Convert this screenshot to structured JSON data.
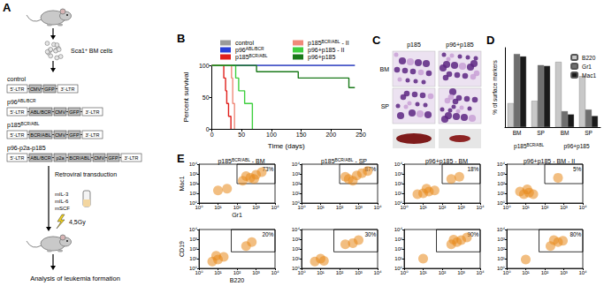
{
  "diagram": {
    "panel": "A",
    "cells": "Sca1+ BM cells",
    "constructs": [
      {
        "name": "control",
        "elements": [
          "5'-LTR",
          "CMV",
          "GFP",
          "3'-LTR"
        ]
      },
      {
        "name": "p96ABL/BCR",
        "elements": [
          "5'-LTR",
          "ABL/BCR",
          "CMV",
          "GFP",
          "3'-LTR"
        ]
      },
      {
        "name": "p185BCR/ABL",
        "elements": [
          "5'-LTR",
          "BCR/ABL",
          "CMV",
          "GFP",
          "3'-LTR"
        ]
      },
      {
        "name": "p96-p2a-p185",
        "elements": [
          "5'-LTR",
          "ABL/BCR",
          "p2a",
          "BCR/ABL",
          "CMV",
          "GFP",
          "3'-LTR"
        ]
      }
    ],
    "transduction": "Retroviral transduction",
    "cytokines": [
      "mIL-3",
      "mIL-6",
      "mSCF"
    ],
    "irradiation": "4,5Gy",
    "analysis": "Analysis of leukemia formation"
  },
  "chart_data": [
    {
      "panel": "B",
      "type": "line",
      "line_style": "step",
      "x_label": "Time (days)",
      "y_label": "Percent survival",
      "xlim": [
        0,
        250
      ],
      "xticks": [
        0,
        50,
        100,
        150,
        200,
        250
      ],
      "ylim": [
        0,
        100
      ],
      "yticks": [
        0,
        50,
        100
      ],
      "grid": false,
      "legend": "top",
      "series": [
        {
          "name": "control",
          "color": "#9a9a9a",
          "x": [
            0,
            240
          ],
          "values": [
            100,
            100
          ]
        },
        {
          "name": "p96ABL/BCR",
          "color": "#2a3fd6",
          "x": [
            0,
            240
          ],
          "values": [
            100,
            100
          ]
        },
        {
          "name": "p185BCR/ABL",
          "color": "#e0201c",
          "x": [
            0,
            20,
            23,
            25,
            28,
            32
          ],
          "values": [
            100,
            80,
            60,
            40,
            20,
            0
          ]
        },
        {
          "name": "p185BCR/ABL - II",
          "color": "#f08a7a",
          "x": [
            0,
            33,
            35,
            38
          ],
          "values": [
            100,
            80,
            40,
            0
          ]
        },
        {
          "name": "p96+p185 - II",
          "color": "#3fcf3f",
          "x": [
            0,
            40,
            45,
            55,
            68
          ],
          "values": [
            100,
            80,
            60,
            40,
            0
          ]
        },
        {
          "name": "p96+p185",
          "color": "#1a7a1a",
          "x": [
            0,
            75,
            145,
            230,
            240
          ],
          "values": [
            100,
            90,
            80,
            65,
            65
          ]
        }
      ]
    },
    {
      "panel": "D",
      "type": "bar",
      "y_label": "% of surface markers",
      "categories": [
        "BM",
        "SP",
        "BM",
        "SP"
      ],
      "group_labels": [
        "p185BCR/ABL",
        "p96+p185"
      ],
      "ylim": [
        0,
        100
      ],
      "tick_labels": "x",
      "grid": false,
      "legend": "top-right",
      "series": [
        {
          "name": "B220",
          "color": "#c8c8c8",
          "values": [
            30,
            33,
            82,
            64
          ]
        },
        {
          "name": "Gr1",
          "color": "#6e6e6e",
          "values": [
            92,
            78,
            20,
            22
          ]
        },
        {
          "name": "Mac1",
          "color": "#1a1a1a",
          "values": [
            89,
            77,
            16,
            14
          ]
        }
      ]
    }
  ],
  "images": {
    "panel": "C",
    "columns": [
      "p185",
      "p96+p185"
    ],
    "rows": [
      "BM",
      "SP"
    ]
  },
  "flow": {
    "panel": "E",
    "type": "scatter",
    "log": true,
    "color": "#e8891a",
    "titles": [
      "p185BCR/ABL - BM",
      "p185BCR/ABL - SP",
      "p96+p185 - BM",
      "p96+p185 - BM - II"
    ],
    "lim": [
      1,
      10000
    ],
    "ticks": [
      {
        "value": 1,
        "label": "10⁰"
      },
      {
        "value": 10,
        "label": "10¹"
      },
      {
        "value": 100,
        "label": "10²"
      },
      {
        "value": 1000,
        "label": "10³"
      },
      {
        "value": 10000,
        "label": "10⁴"
      }
    ],
    "rows": [
      {
        "x_label": "Gr1",
        "y_label": "Mac1",
        "plots": [
          {
            "label": "73%",
            "gate_x": [
              100,
              10000
            ],
            "gate_y": [
              100,
              10000
            ],
            "points": [
              [
                200,
                200
              ],
              [
                500,
                400
              ],
              [
                1000,
                800
              ],
              [
                300,
                600
              ],
              [
                800,
                300
              ],
              [
                2000,
                1500
              ],
              [
                30,
                30
              ],
              [
                10,
                20
              ]
            ]
          },
          {
            "label": "87%",
            "gate_x": [
              100,
              10000
            ],
            "gate_y": [
              100,
              10000
            ],
            "points": [
              [
                300,
                300
              ],
              [
                800,
                700
              ],
              [
                1500,
                1200
              ],
              [
                500,
                200
              ],
              [
                200,
                500
              ],
              [
                3000,
                2000
              ]
            ]
          },
          {
            "label": "18%",
            "gate_x": [
              100,
              10000
            ],
            "gate_y": [
              100,
              10000
            ],
            "points": [
              [
                10,
                10
              ],
              [
                20,
                15
              ],
              [
                5,
                8
              ],
              [
                15,
                30
              ],
              [
                40,
                20
              ],
              [
                300,
                300
              ],
              [
                800,
                500
              ]
            ]
          },
          {
            "label": "5%",
            "gate_x": [
              100,
              10000
            ],
            "gate_y": [
              100,
              10000
            ],
            "points": [
              [
                8,
                8
              ],
              [
                15,
                12
              ],
              [
                5,
                15
              ],
              [
                25,
                8
              ],
              [
                12,
                25
              ],
              [
                500,
                400
              ]
            ]
          }
        ]
      },
      {
        "x_label": "B220",
        "y_label": "CD19",
        "plots": [
          {
            "label": "20%",
            "gate_x": [
              50,
              10000
            ],
            "gate_y": [
              50,
              10000
            ],
            "points": [
              [
                5,
                5
              ],
              [
                10,
                8
              ],
              [
                20,
                15
              ],
              [
                8,
                20
              ],
              [
                300,
                200
              ],
              [
                600,
                500
              ]
            ]
          },
          {
            "label": "30%",
            "gate_x": [
              50,
              10000
            ],
            "gate_y": [
              50,
              10000
            ],
            "points": [
              [
                5,
                5
              ],
              [
                10,
                10
              ],
              [
                15,
                6
              ],
              [
                200,
                300
              ],
              [
                500,
                400
              ],
              [
                1000,
                800
              ]
            ]
          },
          {
            "label": "90%",
            "gate_x": [
              50,
              10000
            ],
            "gate_y": [
              50,
              10000
            ],
            "points": [
              [
                300,
                300
              ],
              [
                600,
                500
              ],
              [
                1000,
                800
              ],
              [
                400,
                900
              ],
              [
                2000,
                1500
              ],
              [
                10,
                10
              ]
            ]
          },
          {
            "label": "80%",
            "gate_x": [
              50,
              10000
            ],
            "gate_y": [
              50,
              10000
            ],
            "points": [
              [
                200,
                200
              ],
              [
                500,
                500
              ],
              [
                900,
                700
              ],
              [
                300,
                800
              ],
              [
                10,
                8
              ]
            ]
          }
        ]
      }
    ]
  }
}
